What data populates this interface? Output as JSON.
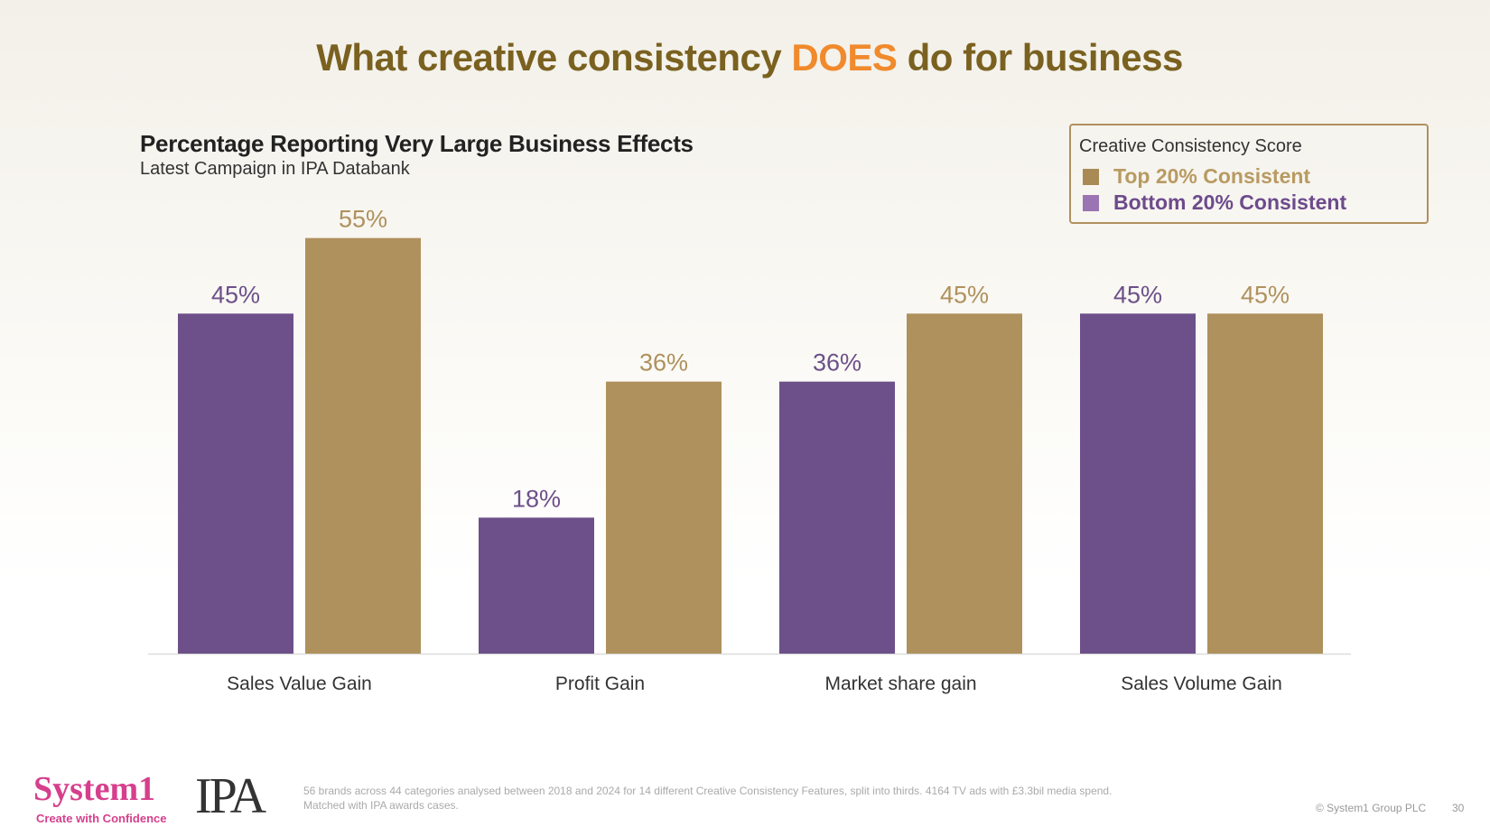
{
  "title": {
    "pre": "What creative consistency ",
    "highlight": "DOES",
    "post": " do for business"
  },
  "chart_data": {
    "type": "bar",
    "title": "Percentage Reporting Very Large Business Effects",
    "subtitle": "Latest Campaign in IPA Databank",
    "categories": [
      "Sales Value Gain",
      "Profit Gain",
      "Market share gain",
      "Sales Volume Gain"
    ],
    "series": [
      {
        "name": "Bottom 20% Consistent",
        "color": "#6d5089",
        "values": [
          45,
          18,
          36,
          45
        ],
        "labels": [
          "45%",
          "18%",
          "36%",
          "45%"
        ]
      },
      {
        "name": "Top 20% Consistent",
        "color": "#af915d",
        "values": [
          55,
          36,
          45,
          45
        ],
        "labels": [
          "55%",
          "36%",
          "45%",
          "45%"
        ]
      }
    ],
    "legend": {
      "title": "Creative Consistency Score",
      "placement": "top-right"
    },
    "ylim": [
      0,
      60
    ],
    "grid": false
  },
  "legend_colors": {
    "top": "#a98a55",
    "bottom": "#9a74b3",
    "top_text": "#b89a62",
    "bottom_text": "#6d4a8c"
  },
  "footer": {
    "note_line1": "56 brands across 44 categories analysed between 2018 and 2024 for 14 different Creative Consistency Features, split into thirds. 4164 TV ads with £3.3bil media spend.",
    "note_line2": "Matched with IPA awards cases.",
    "logo_system1": "System1",
    "logo_tagline": "Create with Confidence",
    "logo_ipa": "IPA",
    "copyright": "© System1 Group PLC",
    "page": "30"
  }
}
